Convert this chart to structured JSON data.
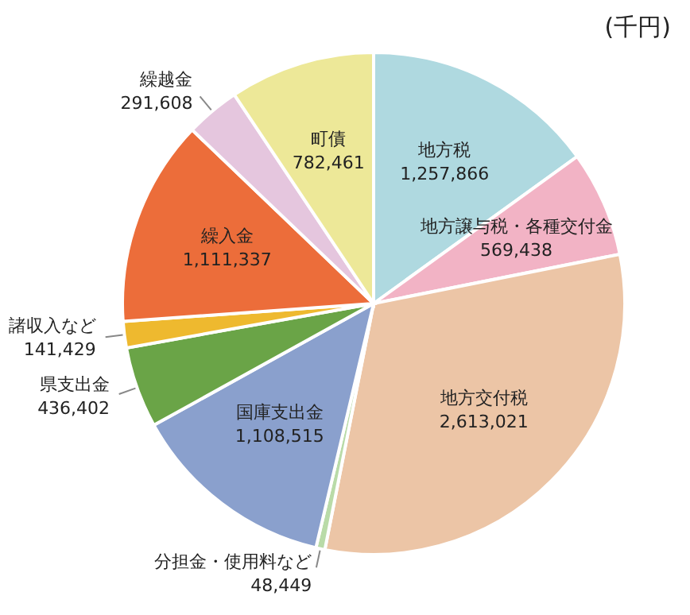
{
  "chart_data": {
    "type": "pie",
    "title": "(千円)",
    "categories": [
      "地方税",
      "地方譲与税・各種交付金",
      "地方交付税",
      "分担金・使用料など",
      "国庫支出金",
      "県支出金",
      "諸収入など",
      "繰入金",
      "繰越金",
      "町債"
    ],
    "values": [
      1257866,
      569438,
      2613021,
      48449,
      1108515,
      436402,
      141429,
      1111337,
      291608,
      782461
    ],
    "colors": [
      "#afd9e0",
      "#f2b3c5",
      "#ecc5a6",
      "#b9dba8",
      "#8aa0cd",
      "#6aa447",
      "#eeb92f",
      "#ec6d3a",
      "#e5c6de",
      "#ede898"
    ],
    "value_labels": [
      "1,257,866",
      "569,438",
      "2,613,021",
      "48,449",
      "1,108,515",
      "436,402",
      "141,429",
      "1,111,337",
      "291,608",
      "782,461"
    ]
  }
}
